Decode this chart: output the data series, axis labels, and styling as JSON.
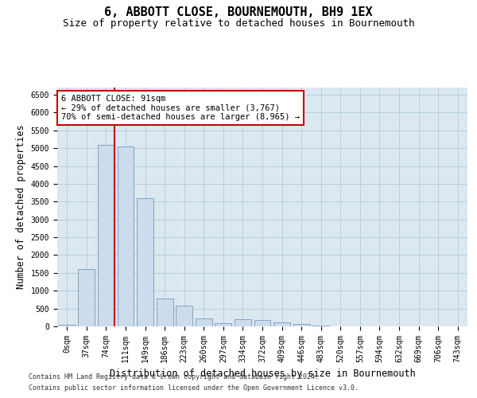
{
  "title": "6, ABBOTT CLOSE, BOURNEMOUTH, BH9 1EX",
  "subtitle": "Size of property relative to detached houses in Bournemouth",
  "xlabel": "Distribution of detached houses by size in Bournemouth",
  "ylabel": "Number of detached properties",
  "footnote1": "Contains HM Land Registry data © Crown copyright and database right 2024.",
  "footnote2": "Contains public sector information licensed under the Open Government Licence v3.0.",
  "bar_labels": [
    "0sqm",
    "37sqm",
    "74sqm",
    "111sqm",
    "149sqm",
    "186sqm",
    "223sqm",
    "260sqm",
    "297sqm",
    "334sqm",
    "372sqm",
    "409sqm",
    "446sqm",
    "483sqm",
    "520sqm",
    "557sqm",
    "594sqm",
    "632sqm",
    "669sqm",
    "706sqm",
    "743sqm"
  ],
  "bar_values": [
    50,
    1600,
    5100,
    5050,
    3600,
    780,
    580,
    230,
    100,
    190,
    185,
    115,
    75,
    18,
    8,
    4,
    2,
    1,
    1,
    0,
    0
  ],
  "bar_color": "#ccdcec",
  "bar_edge_color": "#7799bb",
  "vline_x": 2.42,
  "vline_color": "#cc0000",
  "annotation_text": "6 ABBOTT CLOSE: 91sqm\n← 29% of detached houses are smaller (3,767)\n70% of semi-detached houses are larger (8,965) →",
  "annotation_box_color": "#cc0000",
  "ylim": [
    0,
    6700
  ],
  "yticks": [
    0,
    500,
    1000,
    1500,
    2000,
    2500,
    3000,
    3500,
    4000,
    4500,
    5000,
    5500,
    6000,
    6500
  ],
  "plot_bg_color": "#dce8f0",
  "background_color": "#ffffff",
  "grid_color": "#b8cfe0",
  "title_fontsize": 11,
  "subtitle_fontsize": 9,
  "label_fontsize": 8.5,
  "tick_fontsize": 7,
  "annot_fontsize": 7.5
}
